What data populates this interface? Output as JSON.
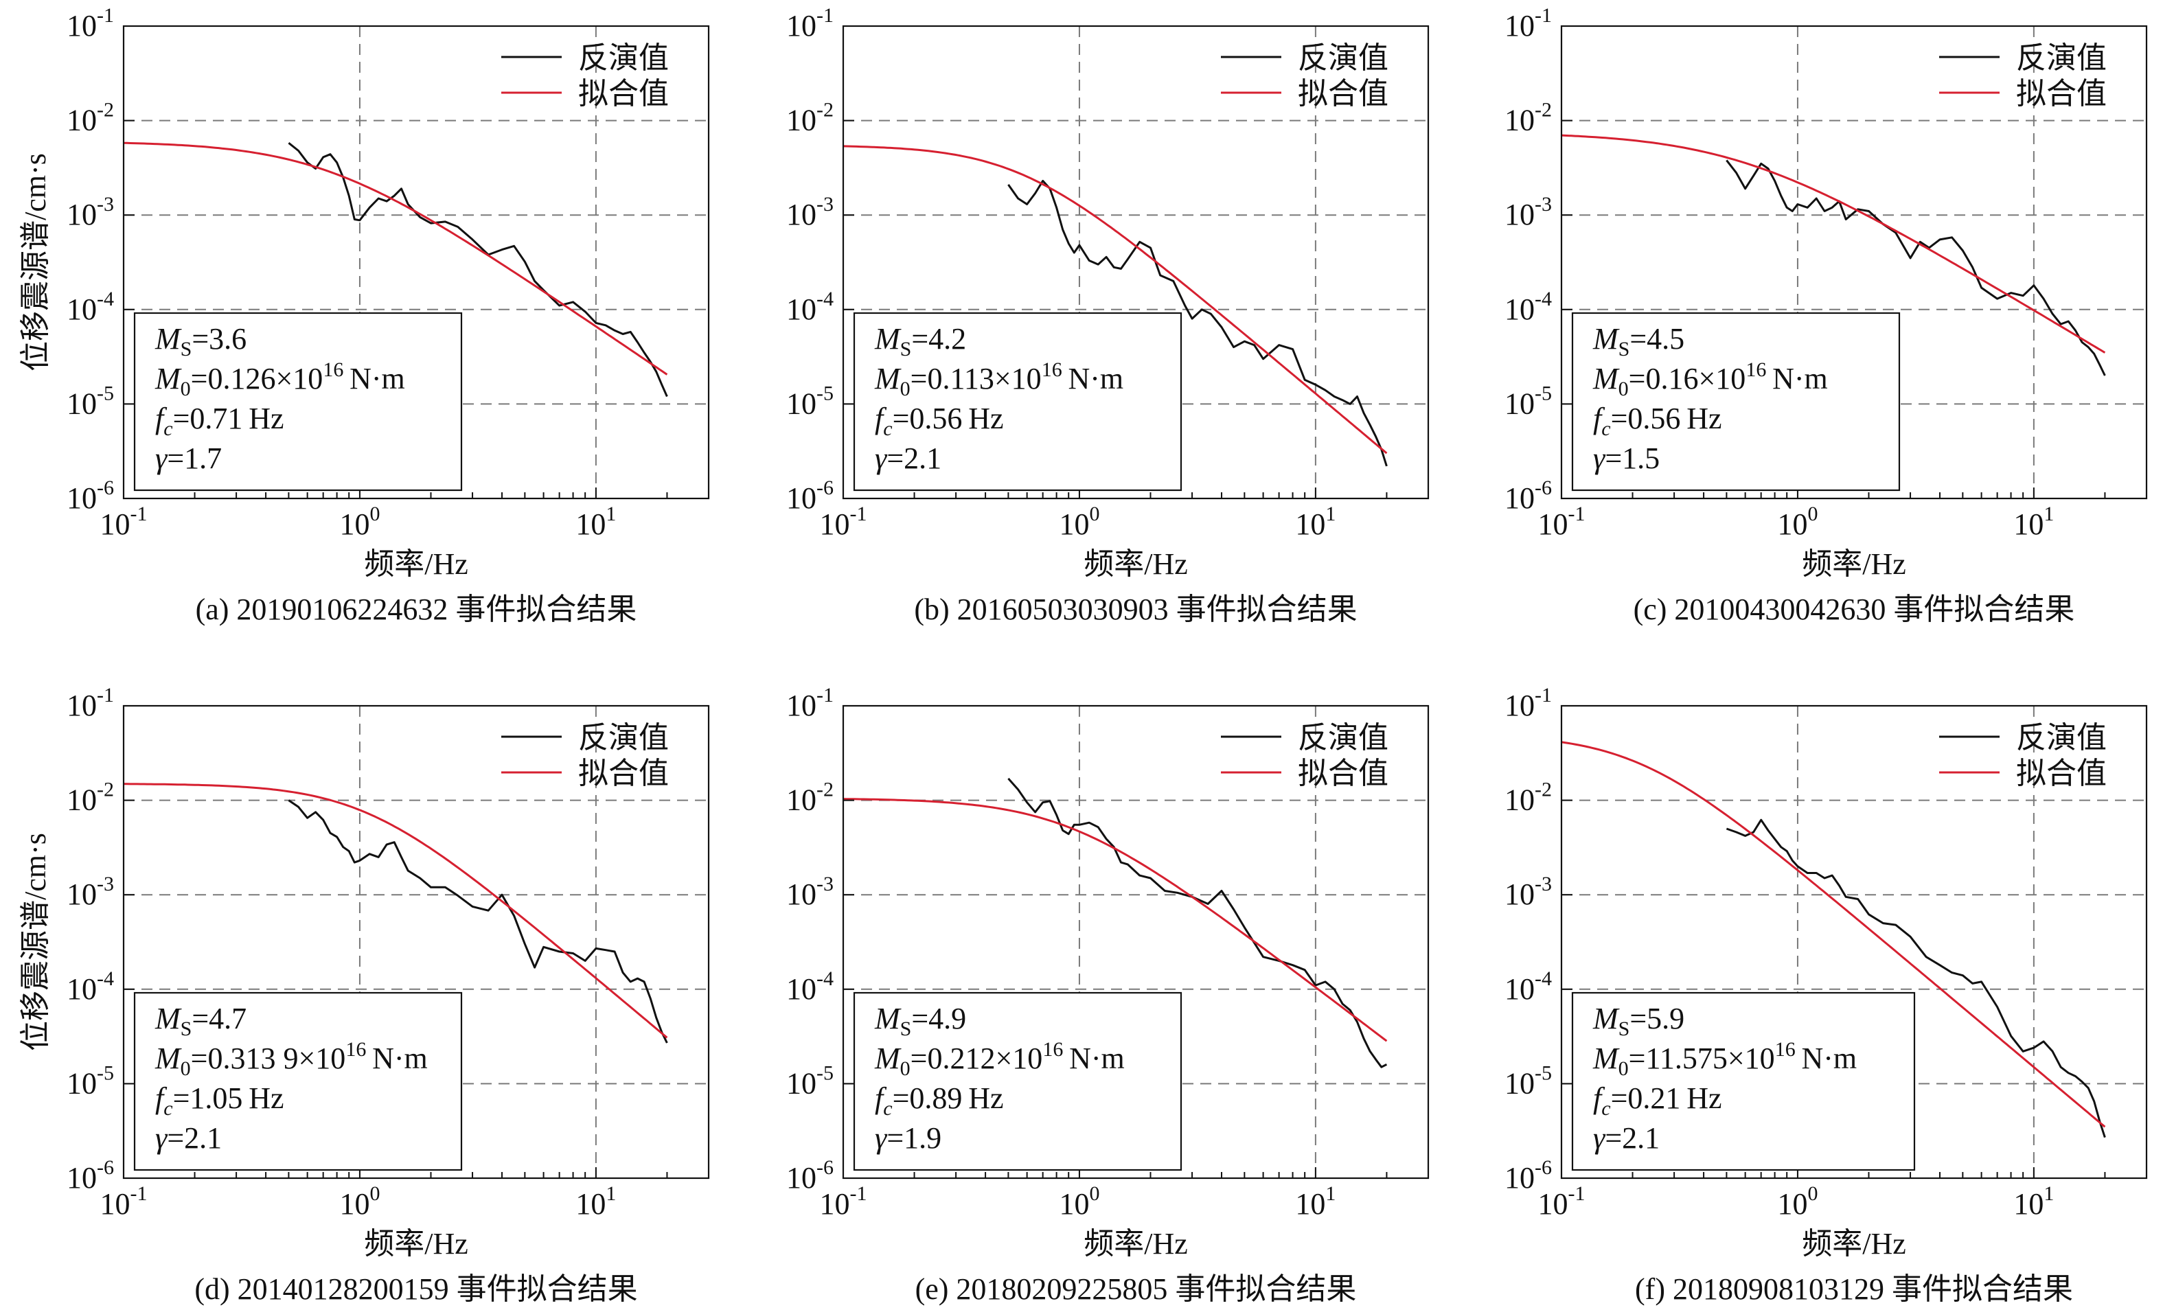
{
  "legend": {
    "inverted": "反演值",
    "fitted": "拟合值"
  },
  "ylabel": "位移震源谱/cm·s",
  "xlabel": "频率/Hz",
  "colors": {
    "inverted": "#111111",
    "fitted": "#d62030"
  },
  "chart_data": [
    {
      "type": "line",
      "caption": "(a) 20190106224632 事件拟合结果",
      "xlim": [
        0.1,
        30
      ],
      "ylim": [
        1e-06,
        0.1
      ],
      "xscale": "log",
      "yscale": "log",
      "grid": true,
      "legend_position": "top-right",
      "params": {
        "ms": "3.6",
        "m0": "0.126",
        "fc": "0.71",
        "gamma": "1.7"
      },
      "series": [
        {
          "name": "反演值",
          "x": [
            0.5,
            0.55,
            0.6,
            0.65,
            0.7,
            0.75,
            0.8,
            0.85,
            0.9,
            0.95,
            1.0,
            1.1,
            1.2,
            1.3,
            1.4,
            1.5,
            1.6,
            1.8,
            2.0,
            2.3,
            2.6,
            3.0,
            3.5,
            4.0,
            4.5,
            5.0,
            5.5,
            6.0,
            7.0,
            8.0,
            9.0,
            10,
            11,
            12,
            13,
            14,
            15,
            16,
            17,
            18,
            19,
            20
          ],
          "y": [
            0.0058,
            0.0048,
            0.0036,
            0.0031,
            0.0041,
            0.0044,
            0.0036,
            0.0025,
            0.0016,
            0.0009,
            0.00088,
            0.0012,
            0.0015,
            0.0014,
            0.0016,
            0.0019,
            0.0013,
            0.00095,
            0.00082,
            0.00085,
            0.00075,
            0.00055,
            0.00038,
            0.00043,
            0.00047,
            0.00032,
            0.0002,
            0.00016,
            0.00011,
            0.00012,
            9.5e-05,
            7.2e-05,
            6.8e-05,
            6e-05,
            5.5e-05,
            5.8e-05,
            4.5e-05,
            3.5e-05,
            2.8e-05,
            2.2e-05,
            1.6e-05,
            1.2e-05
          ]
        },
        {
          "name": "拟合值",
          "fit": true,
          "omega0": 0.006,
          "fc": 0.71,
          "gamma": 1.7
        }
      ]
    },
    {
      "type": "line",
      "caption": "(b) 20160503030903 事件拟合结果",
      "xlim": [
        0.1,
        30
      ],
      "ylim": [
        1e-06,
        0.1
      ],
      "xscale": "log",
      "yscale": "log",
      "grid": true,
      "legend_position": "top-right",
      "params": {
        "ms": "4.2",
        "m0": "0.113",
        "fc": "0.56",
        "gamma": "2.1"
      },
      "series": [
        {
          "name": "反演值",
          "x": [
            0.5,
            0.55,
            0.6,
            0.65,
            0.7,
            0.75,
            0.8,
            0.85,
            0.9,
            0.95,
            1.0,
            1.1,
            1.2,
            1.3,
            1.4,
            1.5,
            1.6,
            1.8,
            2.0,
            2.2,
            2.5,
            2.8,
            3.0,
            3.3,
            3.6,
            4.0,
            4.5,
            5.0,
            5.5,
            6.0,
            7.0,
            8.0,
            9.0,
            10,
            11,
            12,
            13,
            14,
            15,
            16,
            17,
            18,
            19,
            20
          ],
          "y": [
            0.0021,
            0.0015,
            0.0013,
            0.0017,
            0.0023,
            0.0019,
            0.0012,
            0.0007,
            0.0005,
            0.0004,
            0.00048,
            0.00033,
            0.0003,
            0.00036,
            0.00028,
            0.00027,
            0.00034,
            0.00052,
            0.00045,
            0.00023,
            0.0002,
            0.00011,
            8e-05,
            0.0001,
            9e-05,
            6.5e-05,
            4e-05,
            4.6e-05,
            4.2e-05,
            3e-05,
            4.2e-05,
            3.8e-05,
            1.8e-05,
            1.6e-05,
            1.4e-05,
            1.2e-05,
            1.1e-05,
            1e-05,
            1.2e-05,
            8e-06,
            6e-06,
            4.5e-06,
            3.3e-06,
            2.2e-06
          ]
        },
        {
          "name": "拟合值",
          "fit": true,
          "omega0": 0.0055,
          "fc": 0.56,
          "gamma": 2.1
        }
      ]
    },
    {
      "type": "line",
      "caption": "(c) 20100430042630 事件拟合结果",
      "xlim": [
        0.1,
        30
      ],
      "ylim": [
        1e-06,
        0.1
      ],
      "xscale": "log",
      "yscale": "log",
      "grid": true,
      "legend_position": "top-right",
      "params": {
        "ms": "4.5",
        "m0": "0.16",
        "fc": "0.56",
        "gamma": "1.5"
      },
      "series": [
        {
          "name": "反演值",
          "x": [
            0.5,
            0.55,
            0.6,
            0.65,
            0.7,
            0.75,
            0.8,
            0.85,
            0.9,
            0.95,
            1.0,
            1.1,
            1.2,
            1.3,
            1.4,
            1.5,
            1.6,
            1.8,
            2.0,
            2.3,
            2.6,
            3.0,
            3.3,
            3.6,
            4.0,
            4.5,
            5.0,
            5.5,
            6.0,
            7.0,
            8.0,
            9.0,
            10,
            11,
            12,
            13,
            14,
            15,
            16,
            17,
            18,
            19,
            20
          ],
          "y": [
            0.0038,
            0.0028,
            0.0019,
            0.0026,
            0.0035,
            0.0031,
            0.0023,
            0.0016,
            0.0012,
            0.0011,
            0.0013,
            0.0012,
            0.0015,
            0.0011,
            0.0012,
            0.0014,
            0.0009,
            0.00115,
            0.0011,
            0.0008,
            0.00065,
            0.00035,
            0.00052,
            0.00045,
            0.00055,
            0.00058,
            0.00042,
            0.00028,
            0.00017,
            0.00013,
            0.00015,
            0.00014,
            0.00018,
            0.00013,
            9e-05,
            7e-05,
            7.5e-05,
            6e-05,
            4.5e-05,
            4e-05,
            3.4e-05,
            2.6e-05,
            2e-05
          ]
        },
        {
          "name": "拟合值",
          "fit": true,
          "omega0": 0.0075,
          "fc": 0.56,
          "gamma": 1.5
        }
      ]
    },
    {
      "type": "line",
      "caption": "(d) 20140128200159 事件拟合结果",
      "xlim": [
        0.1,
        30
      ],
      "ylim": [
        1e-06,
        0.1
      ],
      "xscale": "log",
      "yscale": "log",
      "grid": true,
      "legend_position": "top-right",
      "params": {
        "ms": "4.7",
        "m0": "0.313 9",
        "fc": "1.05",
        "gamma": "2.1"
      },
      "series": [
        {
          "name": "反演值",
          "x": [
            0.5,
            0.55,
            0.6,
            0.65,
            0.7,
            0.75,
            0.8,
            0.85,
            0.9,
            0.95,
            1.0,
            1.1,
            1.2,
            1.3,
            1.4,
            1.5,
            1.6,
            1.8,
            2.0,
            2.3,
            2.6,
            3.0,
            3.5,
            4.0,
            4.5,
            5.0,
            5.5,
            6.0,
            7.0,
            8.0,
            9.0,
            10,
            11,
            12,
            13,
            14,
            15,
            16,
            17,
            18,
            19,
            20
          ],
          "y": [
            0.01,
            0.0085,
            0.0065,
            0.0075,
            0.0062,
            0.0045,
            0.0041,
            0.0032,
            0.0029,
            0.0022,
            0.0023,
            0.0027,
            0.0025,
            0.0034,
            0.0036,
            0.0025,
            0.0018,
            0.0015,
            0.0012,
            0.0012,
            0.00098,
            0.00075,
            0.00068,
            0.001,
            0.0006,
            0.0003,
            0.00017,
            0.00028,
            0.00025,
            0.00024,
            0.0002,
            0.00027,
            0.00026,
            0.00025,
            0.00015,
            0.00012,
            0.00013,
            0.00012,
            8e-05,
            5e-05,
            3.5e-05,
            2.7e-05
          ]
        },
        {
          "name": "拟合值",
          "fit": true,
          "omega0": 0.015,
          "fc": 1.05,
          "gamma": 2.1
        }
      ]
    },
    {
      "type": "line",
      "caption": "(e) 20180209225805 事件拟合结果",
      "xlim": [
        0.1,
        30
      ],
      "ylim": [
        1e-06,
        0.1
      ],
      "xscale": "log",
      "yscale": "log",
      "grid": true,
      "legend_position": "top-right",
      "params": {
        "ms": "4.9",
        "m0": "0.212",
        "fc": "0.89",
        "gamma": "1.9"
      },
      "series": [
        {
          "name": "反演值",
          "x": [
            0.5,
            0.55,
            0.6,
            0.65,
            0.7,
            0.75,
            0.8,
            0.85,
            0.9,
            0.95,
            1.0,
            1.1,
            1.2,
            1.3,
            1.4,
            1.5,
            1.6,
            1.8,
            2.0,
            2.3,
            2.6,
            3.0,
            3.5,
            4.0,
            4.5,
            5.0,
            5.5,
            6.0,
            7.0,
            8.0,
            9.0,
            10,
            11,
            12,
            13,
            14,
            15,
            16,
            17,
            18,
            19,
            20
          ],
          "y": [
            0.017,
            0.013,
            0.0095,
            0.0075,
            0.0095,
            0.0098,
            0.007,
            0.0048,
            0.0044,
            0.0055,
            0.0055,
            0.0058,
            0.0052,
            0.0039,
            0.0032,
            0.0022,
            0.0021,
            0.0016,
            0.0015,
            0.0011,
            0.00105,
            0.00095,
            0.0008,
            0.0011,
            0.0007,
            0.00045,
            0.00031,
            0.00022,
            0.0002,
            0.00018,
            0.00016,
            0.00011,
            0.00012,
            0.0001,
            7e-05,
            6e-05,
            4.5e-05,
            3e-05,
            2.2e-05,
            1.8e-05,
            1.5e-05,
            1.6e-05
          ]
        },
        {
          "name": "拟合值",
          "fit": true,
          "omega0": 0.0105,
          "fc": 0.89,
          "gamma": 1.9
        }
      ]
    },
    {
      "type": "line",
      "caption": "(f) 20180908103129 事件拟合结果",
      "xlim": [
        0.1,
        30
      ],
      "ylim": [
        1e-06,
        0.1
      ],
      "xscale": "log",
      "yscale": "log",
      "grid": true,
      "legend_position": "top-right",
      "params": {
        "ms": "5.9",
        "m0": "11.575",
        "fc": "0.21",
        "gamma": "2.1"
      },
      "series": [
        {
          "name": "反演值",
          "x": [
            0.5,
            0.55,
            0.6,
            0.65,
            0.7,
            0.75,
            0.8,
            0.85,
            0.9,
            0.95,
            1.0,
            1.1,
            1.2,
            1.3,
            1.4,
            1.5,
            1.6,
            1.8,
            2.0,
            2.3,
            2.6,
            3.0,
            3.5,
            4.0,
            4.5,
            5.0,
            5.5,
            6.0,
            7.0,
            8.0,
            9.0,
            10,
            11,
            12,
            13,
            14,
            15,
            16,
            17,
            18,
            19,
            20
          ],
          "y": [
            0.005,
            0.0046,
            0.0042,
            0.0046,
            0.0062,
            0.0048,
            0.0039,
            0.0032,
            0.0029,
            0.0023,
            0.002,
            0.0017,
            0.0017,
            0.0015,
            0.0016,
            0.00125,
            0.00095,
            0.0009,
            0.00062,
            0.0005,
            0.00048,
            0.00036,
            0.00022,
            0.00018,
            0.00015,
            0.00014,
            0.000115,
            0.00012,
            6.5e-05,
            3.2e-05,
            2.2e-05,
            2.4e-05,
            2.8e-05,
            2.2e-05,
            1.5e-05,
            1.3e-05,
            1.2e-05,
            1.05e-05,
            9e-06,
            6.5e-06,
            4e-06,
            2.7e-06
          ]
        },
        {
          "name": "拟合值",
          "fit": true,
          "omega0": 0.05,
          "fc": 0.21,
          "gamma": 2.1
        }
      ]
    }
  ]
}
